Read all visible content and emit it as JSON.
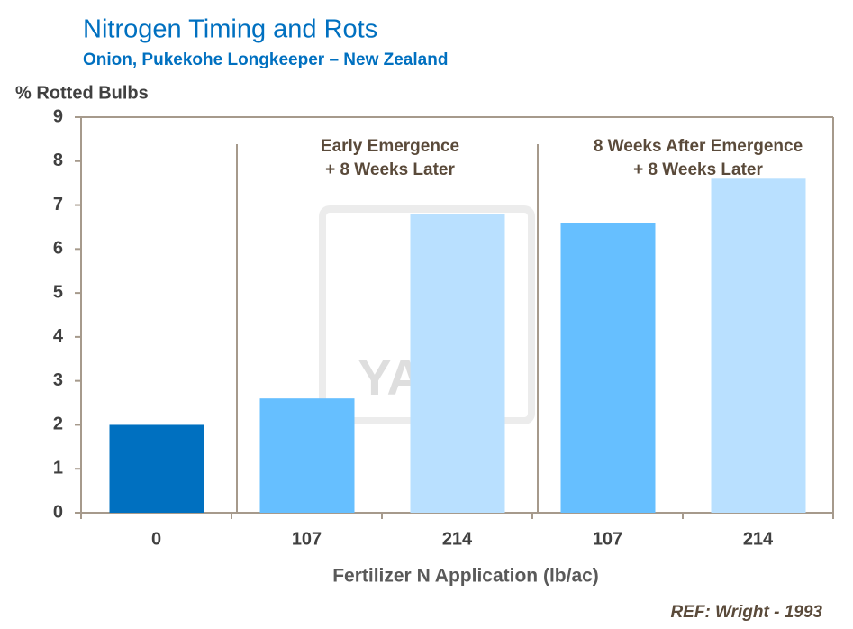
{
  "chart_data": {
    "type": "bar",
    "title": "Nitrogen Timing and Rots",
    "subtitle": "Onion,  Pukekohe Longkeeper – New Zealand",
    "y_label": "% Rotted Bulbs",
    "x_label": "Fertilizer N  Application (lb/ac)",
    "reference": "REF: Wright - 1993",
    "watermark": "YARA",
    "categories": [
      "0",
      "107",
      "214",
      "107",
      "214"
    ],
    "values": [
      2.0,
      2.6,
      6.8,
      6.6,
      7.6
    ],
    "colors": [
      "#0070c0",
      "#66bfff",
      "#b9e0ff",
      "#66bfff",
      "#b9e0ff"
    ],
    "annotations": [
      {
        "lines": [
          "Early Emergence",
          "+ 8 Weeks Later"
        ]
      },
      {
        "lines": [
          "8 Weeks After Emergence",
          "+ 8 Weeks Later"
        ]
      }
    ],
    "ylim": [
      0,
      9
    ],
    "yticks": [
      0,
      1,
      2,
      3,
      4,
      5,
      6,
      7,
      8,
      9
    ],
    "grid": false
  }
}
